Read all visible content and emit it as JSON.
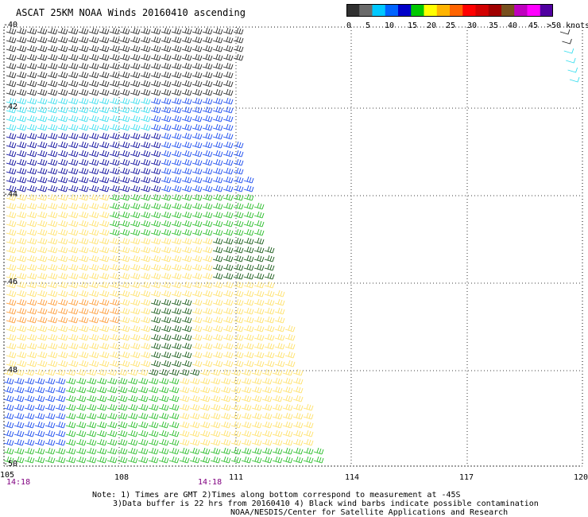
{
  "title": "ASCAT 25KM NOAA Winds 20160410 ascending",
  "colorbar": {
    "labels": [
      "0",
      "5",
      "10",
      "15",
      "20",
      "25",
      "30",
      "35",
      "40",
      "45",
      ">50 knots"
    ],
    "colors": [
      "#303030",
      "#6a6a6a",
      "#00c8ff",
      "#0064ff",
      "#0000c8",
      "#00c800",
      "#ffff00",
      "#ffb400",
      "#ff6400",
      "#ff0000",
      "#d20000",
      "#a00000",
      "#78501e",
      "#be00be",
      "#ff00ff",
      "#5000a0"
    ]
  },
  "map": {
    "lon_labels": [
      "105",
      "108",
      "111",
      "114",
      "117",
      "120"
    ],
    "lat_labels": [
      "-40",
      "-42",
      "-44",
      "-46",
      "-48",
      "-50"
    ],
    "time_labels": [
      "14:18",
      "14:18"
    ],
    "colors": {
      "calm": "#222222",
      "cyan": "#33ddee",
      "blue": "#1144ee",
      "navy": "#000099",
      "green": "#22bb22",
      "darkgreen": "#115511",
      "yellow": "#ffe066",
      "orange": "#ff9933"
    }
  },
  "notes": [
    "Note: 1) Times are GMT 2)Times along bottom correspond to measurement at -45S",
    "3)Data buffer is 22 hrs from 20160410 4) Black wind barbs indicate possible contamination",
    "NOAA/NESDIS/Center for Satellite Applications and Research"
  ]
}
